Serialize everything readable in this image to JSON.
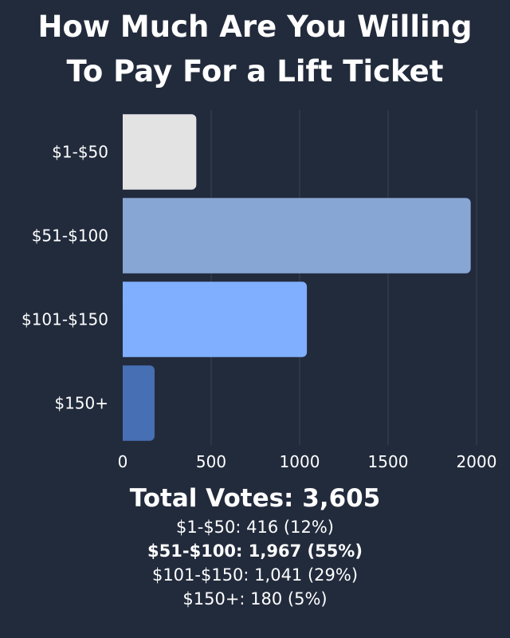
{
  "title_lines": [
    "How Much Are You Willing",
    "To Pay For a Lift Ticket"
  ],
  "chart_data": {
    "type": "bar",
    "orientation": "horizontal",
    "title": "How Much Are You Willing To Pay For a Lift Ticket",
    "categories": [
      "$1-$50",
      "$51-$100",
      "$101-$150",
      "$150+"
    ],
    "values": [
      416,
      1967,
      1041,
      180
    ],
    "colors": [
      "#e3e3e3",
      "#88a6d4",
      "#80afff",
      "#4770b4"
    ],
    "xlim": [
      0,
      2000
    ],
    "xticks": [
      0,
      500,
      1000,
      1500,
      2000
    ],
    "grid": true,
    "legend": "none"
  },
  "summary": {
    "total": "Total Votes: 3,605",
    "lines": [
      {
        "text": "$1-$50: 416 (12%)",
        "bold": false
      },
      {
        "text": "$51-$100: 1,967 (55%)",
        "bold": true
      },
      {
        "text": "$101-$150: 1,041 (29%)",
        "bold": false
      },
      {
        "text": "$150+: 180 (5%)",
        "bold": false
      }
    ]
  },
  "colors": {
    "background": "#222b3c",
    "grid": "#3a4355",
    "text": "#ffffff"
  }
}
